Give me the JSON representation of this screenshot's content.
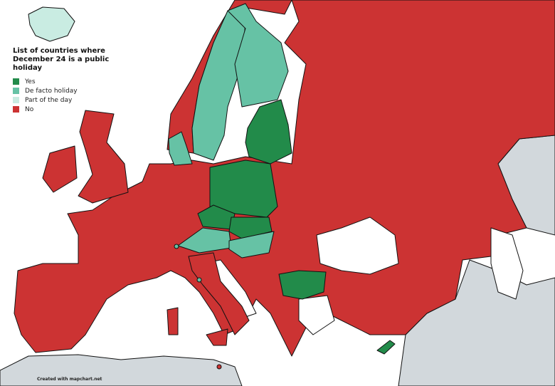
{
  "legend": {
    "title": "List of countries where December 24 is a public holiday",
    "items": [
      {
        "label": "Yes",
        "color": "#228b4a"
      },
      {
        "label": "De facto holiday",
        "color": "#66c2a5"
      },
      {
        "label": "Part of the day",
        "color": "#c9ece2"
      },
      {
        "label": "No",
        "color": "#cc3333"
      }
    ]
  },
  "no_data_color": "#d2d8dc",
  "credit": "Created with mapchart.net"
}
